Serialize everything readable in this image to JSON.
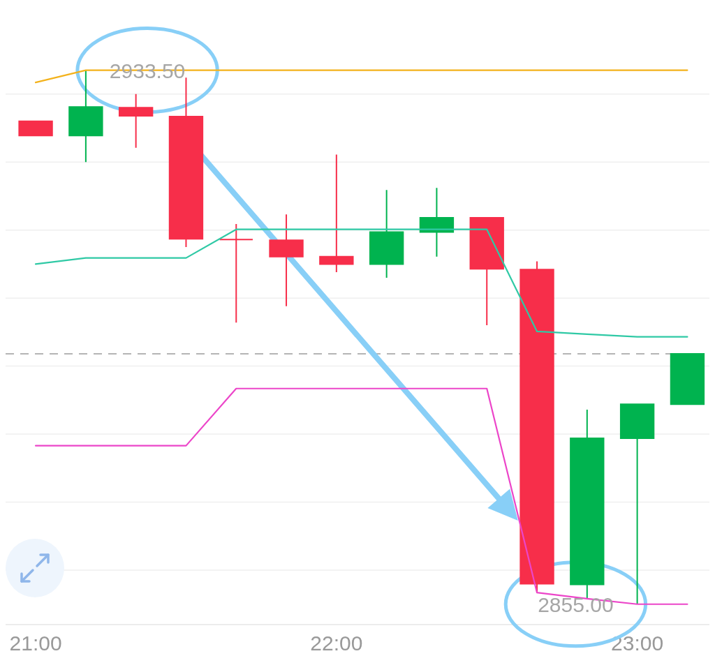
{
  "chart_data": {
    "type": "candlestick",
    "x": [
      21,
      21.1667,
      21.3333,
      21.5,
      21.6667,
      21.8333,
      22,
      22.1667,
      22.3333,
      22.5,
      22.6667,
      22.8333,
      23,
      23.1667
    ],
    "ohlc": [
      [
        2926.0,
        2926.0,
        2923.9,
        2923.9
      ],
      [
        2923.9,
        2933.5,
        2920.0,
        2928.1
      ],
      [
        2928.0,
        2930.0,
        2922.1,
        2926.8
      ],
      [
        2926.7,
        2932.4,
        2907.5,
        2908.7
      ],
      [
        2908.6,
        2910.9,
        2896.4,
        2908.6
      ],
      [
        2908.5,
        2912.3,
        2898.8,
        2906.1
      ],
      [
        2906.1,
        2921.1,
        2903.8,
        2905.0
      ],
      [
        2905.0,
        2915.9,
        2903.0,
        2909.7
      ],
      [
        2909.7,
        2916.2,
        2906.1,
        2911.8
      ],
      [
        2911.8,
        2911.8,
        2896.0,
        2904.3
      ],
      [
        2904.2,
        2905.4,
        2856.7,
        2858.0
      ],
      [
        2857.9,
        2883.6,
        2855.8,
        2879.4
      ],
      [
        2879.4,
        2884.4,
        2855.0,
        2884.4
      ],
      [
        2884.4,
        2891.8,
        2884.4,
        2891.8
      ]
    ],
    "colors": [
      "#f72e4a",
      "#00b34f",
      "#f72e4a",
      "#f72e4a",
      "#f72e4a",
      "#f72e4a",
      "#f72e4a",
      "#00b34f",
      "#00b34f",
      "#f72e4a",
      "#f72e4a",
      "#00b34f",
      "#00b34f",
      "#00b34f"
    ],
    "series": [
      {
        "type": "line",
        "color": "#f3b21c",
        "values": [
          2931.7,
          2933.5,
          2933.5,
          2933.5,
          2933.5,
          2933.5,
          2933.5,
          2933.5,
          2933.5,
          2933.5,
          2933.5,
          2933.5,
          2933.5,
          2933.5
        ]
      },
      {
        "type": "line",
        "color": "#2fc9a5",
        "values": [
          2905.0,
          2905.9,
          2905.9,
          2905.9,
          2910.1,
          2910.1,
          2910.1,
          2910.1,
          2910.1,
          2910.1,
          2895.1,
          2894.7,
          2894.3,
          2894.3
        ]
      },
      {
        "type": "line",
        "color": "#ec45c9",
        "values": [
          2878.3,
          2878.3,
          2878.3,
          2878.3,
          2886.7,
          2886.7,
          2886.7,
          2886.7,
          2886.7,
          2886.7,
          2856.7,
          2855.8,
          2855.0,
          2855.0
        ]
      }
    ],
    "xlim": [
      20.9,
      23.24
    ],
    "ylim": [
      2852,
      2943
    ],
    "xticks": [
      {
        "value": 21,
        "label": "21:00"
      },
      {
        "value": 22,
        "label": "22:00"
      },
      {
        "value": 23,
        "label": "23:00"
      }
    ],
    "yticks": [
      {
        "value": 2860,
        "label": null
      },
      {
        "value": 2870,
        "label": null
      },
      {
        "value": 2880,
        "label": null
      },
      {
        "value": 2890,
        "label": null
      },
      {
        "value": 2900,
        "label": null
      },
      {
        "value": 2910,
        "label": null
      },
      {
        "value": 2920,
        "label": null
      },
      {
        "value": 2930,
        "label": null
      }
    ],
    "grid": "y",
    "tick_labels": "x",
    "ref_lines": [
      {
        "axis": "y",
        "value": 2891.8,
        "color": "#b4b4b4",
        "line_style": "dashed"
      }
    ],
    "annotations": [
      {
        "text": "2933.50",
        "x": 21.1667,
        "y": 2933.5
      },
      {
        "text": "2855.00",
        "x": 23,
        "y": 2855
      }
    ]
  }
}
